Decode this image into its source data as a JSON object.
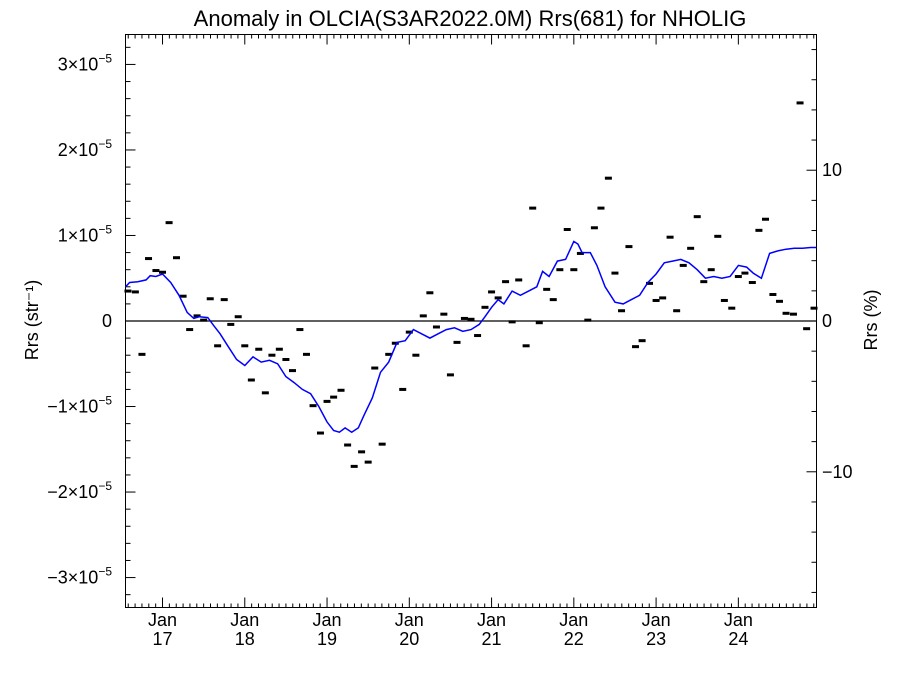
{
  "chart_data": {
    "type": "scatter+line",
    "title": "Anomaly in OLCIA(S3AR2022.0M) Rrs(681) for NHOLIG",
    "ylabel_left": "Rrs (str⁻¹)",
    "ylabel_right": "Rrs (%)",
    "ylim_left": [
      -3.35e-05,
      3.35e-05
    ],
    "ylim_right": [
      -19,
      19
    ],
    "xlim": [
      2016.55,
      2024.95
    ],
    "x_ticks": [
      {
        "x": 2017.0,
        "month": "Jan",
        "year": "17"
      },
      {
        "x": 2018.0,
        "month": "Jan",
        "year": "18"
      },
      {
        "x": 2019.0,
        "month": "Jan",
        "year": "19"
      },
      {
        "x": 2020.0,
        "month": "Jan",
        "year": "20"
      },
      {
        "x": 2021.0,
        "month": "Jan",
        "year": "21"
      },
      {
        "x": 2022.0,
        "month": "Jan",
        "year": "22"
      },
      {
        "x": 2023.0,
        "month": "Jan",
        "year": "23"
      },
      {
        "x": 2024.0,
        "month": "Jan",
        "year": "24"
      }
    ],
    "y_ticks_left": [
      {
        "v": 3e-05,
        "mant": "3×10",
        "exp": "−5"
      },
      {
        "v": 2e-05,
        "mant": "2×10",
        "exp": "−5"
      },
      {
        "v": 1e-05,
        "mant": "1×10",
        "exp": "−5"
      },
      {
        "v": 0,
        "mant": "0",
        "exp": ""
      },
      {
        "v": -1e-05,
        "mant": "−1×10",
        "exp": "−5"
      },
      {
        "v": -2e-05,
        "mant": "−2×10",
        "exp": "−5"
      },
      {
        "v": -3e-05,
        "mant": "−3×10",
        "exp": "−5"
      }
    ],
    "y_ticks_right": [
      {
        "v": 10,
        "label": "10"
      },
      {
        "v": 0,
        "label": "0"
      },
      {
        "v": -10,
        "label": "−10"
      }
    ],
    "series": [
      {
        "name": "monthly",
        "style": "dash-marker",
        "color": "#000000",
        "x": [
          2016.58,
          2016.67,
          2016.75,
          2016.83,
          2016.92,
          2017.0,
          2017.08,
          2017.17,
          2017.25,
          2017.33,
          2017.42,
          2017.5,
          2017.58,
          2017.67,
          2017.75,
          2017.83,
          2017.92,
          2018.0,
          2018.08,
          2018.17,
          2018.25,
          2018.33,
          2018.42,
          2018.5,
          2018.58,
          2018.67,
          2018.75,
          2018.83,
          2018.92,
          2019.0,
          2019.08,
          2019.17,
          2019.25,
          2019.33,
          2019.42,
          2019.5,
          2019.58,
          2019.67,
          2019.75,
          2019.83,
          2019.92,
          2020.0,
          2020.08,
          2020.17,
          2020.25,
          2020.33,
          2020.42,
          2020.5,
          2020.58,
          2020.67,
          2020.75,
          2020.83,
          2020.92,
          2021.0,
          2021.08,
          2021.17,
          2021.25,
          2021.33,
          2021.42,
          2021.5,
          2021.58,
          2021.67,
          2021.75,
          2021.83,
          2021.92,
          2022.0,
          2022.08,
          2022.17,
          2022.25,
          2022.33,
          2022.42,
          2022.5,
          2022.58,
          2022.67,
          2022.75,
          2022.83,
          2022.92,
          2023.0,
          2023.08,
          2023.17,
          2023.25,
          2023.33,
          2023.42,
          2023.5,
          2023.58,
          2023.67,
          2023.75,
          2023.83,
          2023.92,
          2024.0,
          2024.08,
          2024.17,
          2024.25,
          2024.33,
          2024.42,
          2024.5,
          2024.58,
          2024.67,
          2024.75,
          2024.83,
          2024.92
        ],
        "y": [
          3.5e-06,
          3.4e-06,
          -3.9e-06,
          7.3e-06,
          5.9e-06,
          5.7e-06,
          1.15e-05,
          7.4e-06,
          2.9e-06,
          -1e-06,
          6e-07,
          1e-07,
          2.6e-06,
          -2.9e-06,
          2.5e-06,
          -4e-07,
          5e-07,
          -2.9e-06,
          -6.9e-06,
          -3.3e-06,
          -8.4e-06,
          -4e-06,
          -3.3e-06,
          -4.5e-06,
          -5.8e-06,
          -1e-06,
          -3.9e-06,
          -9.9e-06,
          -1.31e-05,
          -9.4e-06,
          -8.9e-06,
          -8.1e-06,
          -1.45e-05,
          -1.7e-05,
          -1.53e-05,
          -1.65e-05,
          -5.5e-06,
          -1.44e-05,
          -3.9e-06,
          -2.6e-06,
          -8e-06,
          -1.3e-06,
          -4e-06,
          6e-07,
          3.3e-06,
          -7e-07,
          8e-07,
          -6.3e-06,
          -2.5e-06,
          3e-07,
          2e-07,
          -1.7e-06,
          1.6e-06,
          3.4e-06,
          2.7e-06,
          4.6e-06,
          -1e-07,
          4.8e-06,
          -2.9e-06,
          1.32e-05,
          -2e-07,
          3.7e-06,
          2.5e-06,
          6e-06,
          1.07e-05,
          6e-06,
          7.9e-06,
          1e-07,
          1.09e-05,
          1.32e-05,
          1.67e-05,
          5.6e-06,
          1.2e-06,
          8.7e-06,
          -3e-06,
          -2.3e-06,
          4.4e-06,
          2.4e-06,
          2.7e-06,
          9.8e-06,
          1.2e-06,
          6.5e-06,
          8.5e-06,
          1.22e-05,
          4.6e-06,
          6e-06,
          9.9e-06,
          2.4e-06,
          1.5e-06,
          5.2e-06,
          5.6e-06,
          4.5e-06,
          1.06e-05,
          1.19e-05,
          3.1e-06,
          2.3e-06,
          9e-07,
          8e-07,
          2.55e-05,
          -9e-07,
          1.5e-06
        ]
      },
      {
        "name": "smoothed",
        "style": "line",
        "color": "#0000ff",
        "x": [
          2016.55,
          2016.6,
          2016.7,
          2016.8,
          2016.85,
          2016.92,
          2017.0,
          2017.1,
          2017.2,
          2017.3,
          2017.38,
          2017.45,
          2017.55,
          2017.62,
          2017.7,
          2017.8,
          2017.9,
          2018.0,
          2018.1,
          2018.2,
          2018.3,
          2018.4,
          2018.5,
          2018.6,
          2018.7,
          2018.8,
          2018.9,
          2019.0,
          2019.08,
          2019.15,
          2019.22,
          2019.3,
          2019.38,
          2019.45,
          2019.55,
          2019.65,
          2019.75,
          2019.85,
          2019.95,
          2020.05,
          2020.15,
          2020.25,
          2020.35,
          2020.45,
          2020.55,
          2020.65,
          2020.75,
          2020.85,
          2020.92,
          2021.0,
          2021.08,
          2021.15,
          2021.25,
          2021.35,
          2021.45,
          2021.55,
          2021.62,
          2021.7,
          2021.8,
          2021.9,
          2022.0,
          2022.05,
          2022.1,
          2022.2,
          2022.28,
          2022.38,
          2022.5,
          2022.6,
          2022.7,
          2022.8,
          2022.9,
          2023.0,
          2023.1,
          2023.2,
          2023.3,
          2023.4,
          2023.5,
          2023.6,
          2023.7,
          2023.8,
          2023.9,
          2024.0,
          2024.1,
          2024.18,
          2024.28,
          2024.38,
          2024.48,
          2024.58,
          2024.68,
          2024.78,
          2024.88,
          2024.95
        ],
        "y": [
          4e-06,
          4.5e-06,
          4.6e-06,
          4.8e-06,
          5.3e-06,
          5.2e-06,
          5.5e-06,
          4.5e-06,
          3e-06,
          1e-06,
          3e-07,
          5e-07,
          4e-07,
          -5e-07,
          -1.5e-06,
          -3e-06,
          -4.5e-06,
          -5.2e-06,
          -4.2e-06,
          -4.8e-06,
          -4.6e-06,
          -5e-06,
          -6.5e-06,
          -7.2e-06,
          -8e-06,
          -8.5e-06,
          -1e-05,
          -1.18e-05,
          -1.28e-05,
          -1.3e-05,
          -1.25e-05,
          -1.3e-05,
          -1.25e-05,
          -1.1e-05,
          -9e-06,
          -6e-06,
          -4.8e-06,
          -2.5e-06,
          -2.3e-06,
          -1e-06,
          -1.5e-06,
          -2e-06,
          -1.5e-06,
          -1e-06,
          -8e-07,
          -1.2e-06,
          -1e-06,
          -4e-07,
          5e-07,
          1.6e-06,
          2.5e-06,
          2e-06,
          3.5e-06,
          3e-06,
          3.5e-06,
          4e-06,
          5.8e-06,
          5.2e-06,
          7e-06,
          7.2e-06,
          9.3e-06,
          9e-06,
          8e-06,
          8e-06,
          6.5e-06,
          4e-06,
          2.2e-06,
          2e-06,
          2.5e-06,
          3e-06,
          4.5e-06,
          5.5e-06,
          6.8e-06,
          7e-06,
          7.2e-06,
          6.8e-06,
          6e-06,
          5e-06,
          5.2e-06,
          5e-06,
          5.2e-06,
          6.5e-06,
          6.3e-06,
          5.6e-06,
          5e-06,
          7.9e-06,
          8.2e-06,
          8.4e-06,
          8.5e-06,
          8.5e-06,
          8.6e-06,
          8.6e-06
        ]
      }
    ]
  }
}
